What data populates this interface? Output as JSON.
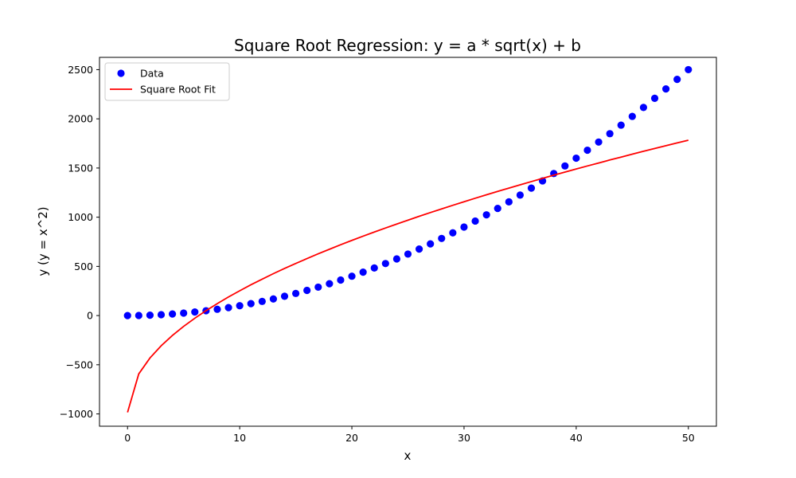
{
  "chart_data": {
    "type": "scatter",
    "title": "Square Root Regression: y = a * sqrt(x) + b",
    "xlabel": "x",
    "ylabel": "y (y = x^2)",
    "xlim": [
      -2.5,
      52.5
    ],
    "ylim": [
      -1125,
      2625
    ],
    "xticks": [
      0,
      10,
      20,
      30,
      40,
      50
    ],
    "yticks": [
      -1000,
      -500,
      0,
      500,
      1000,
      1500,
      2000,
      2500
    ],
    "grid": false,
    "legend_position": "upper left",
    "series": [
      {
        "name": "Data",
        "kind": "scatter",
        "color": "#0000ff",
        "x": [
          0,
          1,
          2,
          3,
          4,
          5,
          6,
          7,
          8,
          9,
          10,
          11,
          12,
          13,
          14,
          15,
          16,
          17,
          18,
          19,
          20,
          21,
          22,
          23,
          24,
          25,
          26,
          27,
          28,
          29,
          30,
          31,
          32,
          33,
          34,
          35,
          36,
          37,
          38,
          39,
          40,
          41,
          42,
          43,
          44,
          45,
          46,
          47,
          48,
          49,
          50
        ],
        "y": [
          0,
          1,
          4,
          9,
          16,
          25,
          36,
          49,
          64,
          81,
          100,
          121,
          144,
          169,
          196,
          225,
          256,
          289,
          324,
          361,
          400,
          441,
          484,
          529,
          576,
          625,
          676,
          729,
          784,
          841,
          900,
          961,
          1024,
          1089,
          1156,
          1225,
          1296,
          1369,
          1444,
          1521,
          1600,
          1681,
          1764,
          1849,
          1936,
          2025,
          2116,
          2209,
          2304,
          2401,
          2500
        ]
      },
      {
        "name": "Square Root Fit",
        "kind": "line",
        "color": "#ff0000",
        "x": [
          0,
          1,
          2,
          3,
          4,
          5,
          6,
          7,
          8,
          9,
          10,
          11,
          12,
          13,
          14,
          15,
          16,
          17,
          18,
          19,
          20,
          21,
          22,
          23,
          24,
          25,
          26,
          27,
          28,
          29,
          30,
          31,
          32,
          33,
          34,
          35,
          36,
          37,
          38,
          39,
          40,
          41,
          42,
          43,
          44,
          45,
          46,
          47,
          48,
          49,
          50
        ],
        "y": [
          -984,
          -593,
          -431,
          -307,
          -202,
          -110,
          -27,
          50,
          121,
          189,
          252,
          313,
          370,
          426,
          479,
          530,
          579,
          628,
          674,
          720,
          764,
          807,
          849,
          890,
          930,
          970,
          1009,
          1047,
          1084,
          1121,
          1157,
          1193,
          1228,
          1262,
          1296,
          1329,
          1362,
          1395,
          1427,
          1459,
          1490,
          1521,
          1551,
          1582,
          1611,
          1641,
          1670,
          1699,
          1727,
          1755,
          1783
        ]
      }
    ]
  }
}
